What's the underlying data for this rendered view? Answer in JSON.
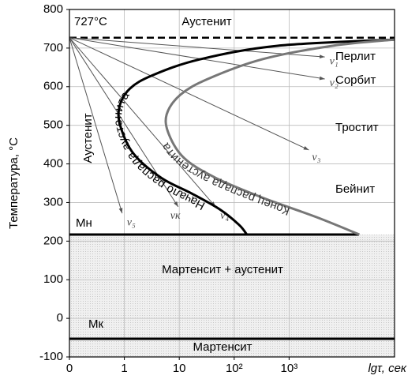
{
  "chart_data": {
    "type": "line",
    "ylabel": "Температура, °С",
    "xlabel": "lgτ, сек",
    "xlim": [
      -1,
      4.92
    ],
    "ylim": [
      -100,
      800
    ],
    "xticks": [
      {
        "value": -1,
        "label": "0"
      },
      {
        "value": 0,
        "label": "1"
      },
      {
        "value": 1,
        "label": "10"
      },
      {
        "value": 2,
        "label": "10²"
      },
      {
        "value": 3,
        "label": "10³"
      }
    ],
    "yticks": [
      -100,
      0,
      100,
      200,
      300,
      400,
      500,
      600,
      700,
      800
    ],
    "grid": true,
    "series": [
      {
        "name": "Начало распада аустенита",
        "color": "#000000",
        "x": [
          4.92,
          2.79,
          1.38,
          0.52,
          0.1,
          -0.09,
          -0.07,
          0.17,
          0.67,
          1.23,
          1.73,
          2.09,
          2.23
        ],
        "values": [
          722,
          706,
          671,
          630,
          595,
          548,
          497,
          426,
          364,
          323,
          283,
          242,
          217
        ]
      },
      {
        "name": "Конец распада аустенита",
        "color": "#777777",
        "x": [
          4.92,
          3.79,
          2.51,
          1.52,
          1.02,
          0.77,
          0.81,
          1.09,
          1.66,
          2.51,
          3.5,
          4.28
        ],
        "values": [
          722,
          706,
          671,
          620,
          579,
          528,
          477,
          415,
          364,
          313,
          262,
          217
        ]
      }
    ],
    "rays": [
      {
        "name": "v₁",
        "x": [
          -1,
          3.65
        ],
        "values": [
          727,
          677
        ]
      },
      {
        "name": "v₂",
        "x": [
          -1,
          3.65
        ],
        "values": [
          727,
          620
        ]
      },
      {
        "name": "v₃",
        "x": [
          -1,
          3.36
        ],
        "values": [
          727,
          436
        ]
      },
      {
        "name": "v₄",
        "x": [
          -1,
          1.66
        ],
        "values": [
          727,
          289
        ]
      },
      {
        "name": "vк",
        "x": [
          -1,
          0.98
        ],
        "values": [
          727,
          289
        ]
      },
      {
        "name": "v₅",
        "x": [
          -1,
          -0.04
        ],
        "values": [
          727,
          272
        ]
      }
    ],
    "a1": {
      "label": "727°C",
      "value": 727
    },
    "mn": {
      "label": "Мн",
      "value": 217
    },
    "mk": {
      "label": "Мк",
      "value": -53
    },
    "regions": [
      "Аустенит",
      "Перлит",
      "Сорбит",
      "Тростит",
      "Бейнит",
      "Аустенит",
      "Мартенсит + аустенит",
      "Мартенсит"
    ]
  }
}
